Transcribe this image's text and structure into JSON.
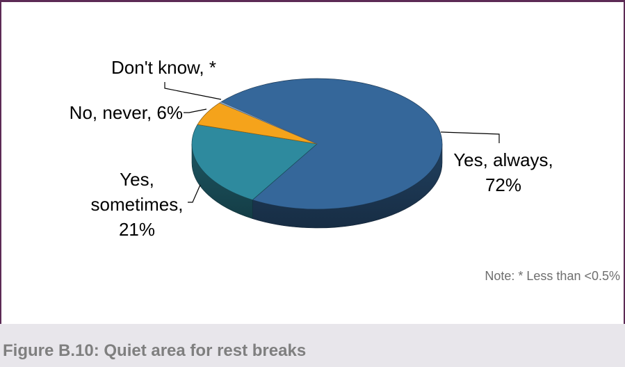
{
  "chart_data": {
    "type": "pie",
    "three_d": true,
    "categories": [
      "Yes, always",
      "Yes, sometimes",
      "No, never",
      "Don't know"
    ],
    "values": [
      72,
      21,
      6,
      0.3
    ],
    "value_labels": [
      "72%",
      "21%",
      "6%",
      "*"
    ],
    "label_separator": ", ",
    "colors": [
      "#35679a",
      "#2e8a9e",
      "#f5a31b",
      "#8fb3d9"
    ],
    "note": "Note: * Less than <0.5%"
  },
  "figure": {
    "caption": "Figure B.10: Quiet area for rest breaks"
  },
  "theme": {
    "border": "#5c2a55",
    "panel_background": "#ffffff",
    "caption_band": "#e8e6eb",
    "caption_text": "#7f7f7f",
    "note_text": "#6e6e6e"
  }
}
